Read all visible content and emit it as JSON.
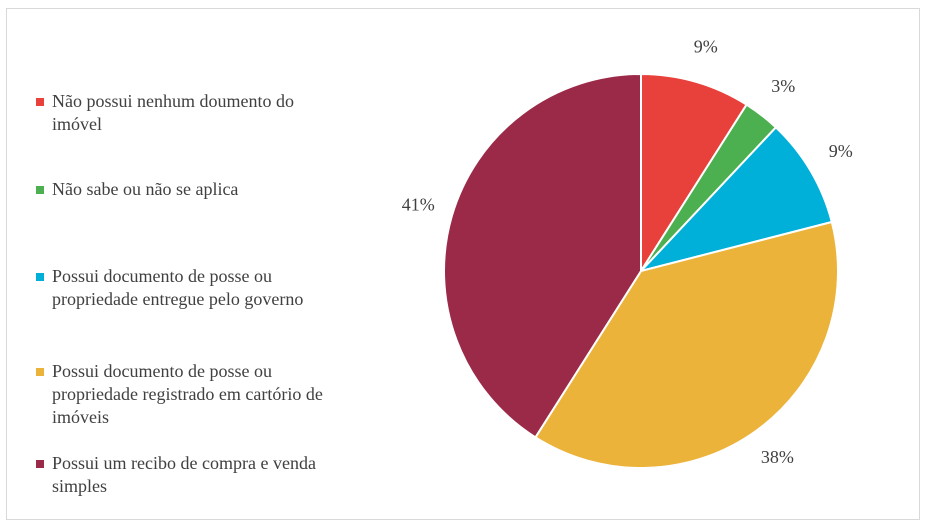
{
  "chart_data": {
    "type": "pie",
    "categories": [
      "Não possui nenhum doumento do imóvel",
      "Não sabe ou não se aplica",
      "Possui documento de posse ou propriedade entregue pelo governo",
      "Possui documento de posse ou propriedade registrado em cartório de imóveis",
      "Possui um recibo de compra e venda simples"
    ],
    "values": [
      9,
      3,
      9,
      38,
      41
    ],
    "value_labels": [
      "9%",
      "3%",
      "9%",
      "38%",
      "41%"
    ],
    "colors": [
      "#e8403a",
      "#4caf50",
      "#00b0d8",
      "#ecb33a",
      "#9b2948"
    ],
    "legend": "left"
  }
}
